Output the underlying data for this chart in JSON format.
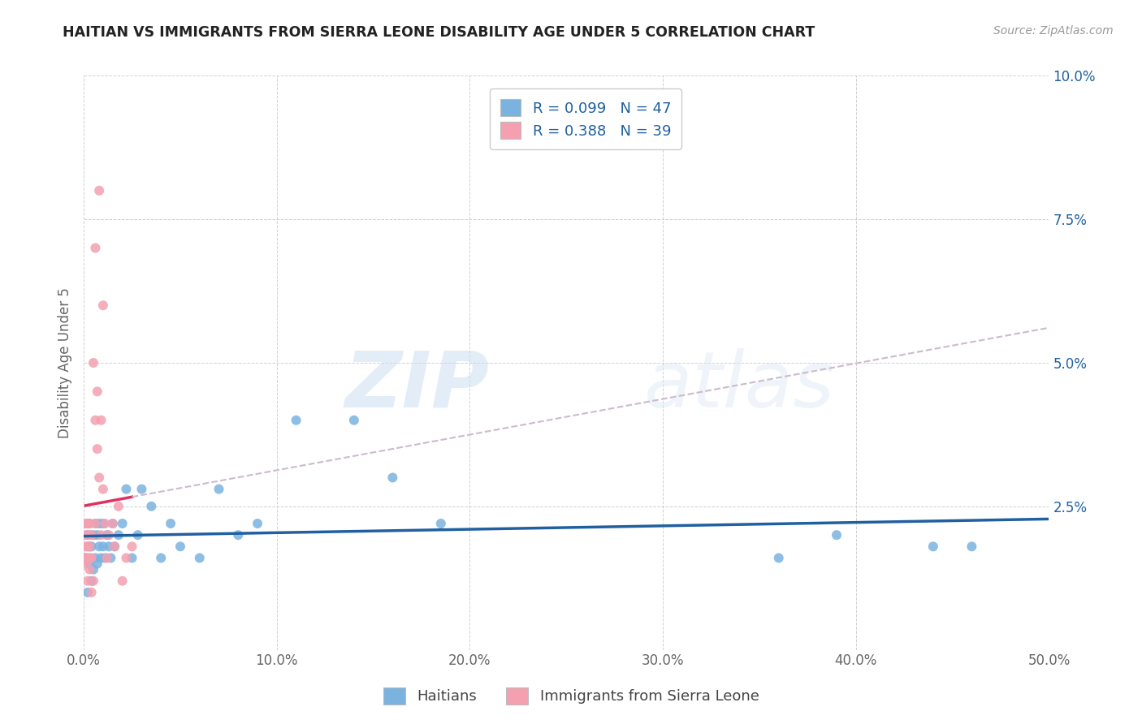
{
  "title": "HAITIAN VS IMMIGRANTS FROM SIERRA LEONE DISABILITY AGE UNDER 5 CORRELATION CHART",
  "source": "Source: ZipAtlas.com",
  "ylabel": "Disability Age Under 5",
  "xlim": [
    0.0,
    0.5
  ],
  "ylim": [
    0.0,
    0.1
  ],
  "xticks": [
    0.0,
    0.1,
    0.2,
    0.3,
    0.4,
    0.5
  ],
  "yticks": [
    0.0,
    0.025,
    0.05,
    0.075,
    0.1
  ],
  "xtick_labels": [
    "0.0%",
    "10.0%",
    "20.0%",
    "30.0%",
    "40.0%",
    "50.0%"
  ],
  "ytick_labels": [
    "",
    "2.5%",
    "5.0%",
    "7.5%",
    "10.0%"
  ],
  "blue_R": 0.099,
  "blue_N": 47,
  "pink_R": 0.388,
  "pink_N": 39,
  "blue_color": "#7ab3e0",
  "pink_color": "#f4a0b0",
  "blue_line_color": "#2060a0",
  "pink_line_color": "#e03060",
  "pink_line_dashed_color": "#ccbbcc",
  "watermark_zip": "ZIP",
  "watermark_atlas": "atlas",
  "legend_label_blue": "Haitians",
  "legend_label_pink": "Immigrants from Sierra Leone",
  "blue_scatter_x": [
    0.001,
    0.002,
    0.002,
    0.003,
    0.003,
    0.003,
    0.004,
    0.004,
    0.005,
    0.005,
    0.006,
    0.006,
    0.007,
    0.007,
    0.008,
    0.008,
    0.009,
    0.01,
    0.01,
    0.011,
    0.012,
    0.013,
    0.014,
    0.015,
    0.016,
    0.018,
    0.02,
    0.022,
    0.025,
    0.028,
    0.03,
    0.035,
    0.04,
    0.045,
    0.05,
    0.06,
    0.07,
    0.08,
    0.09,
    0.11,
    0.14,
    0.16,
    0.185,
    0.36,
    0.39,
    0.44,
    0.46
  ],
  "blue_scatter_y": [
    0.016,
    0.01,
    0.02,
    0.015,
    0.018,
    0.022,
    0.012,
    0.018,
    0.014,
    0.02,
    0.016,
    0.022,
    0.015,
    0.02,
    0.018,
    0.022,
    0.016,
    0.018,
    0.022,
    0.016,
    0.02,
    0.018,
    0.016,
    0.022,
    0.018,
    0.02,
    0.022,
    0.028,
    0.016,
    0.02,
    0.028,
    0.025,
    0.016,
    0.022,
    0.018,
    0.016,
    0.028,
    0.02,
    0.022,
    0.04,
    0.04,
    0.03,
    0.022,
    0.016,
    0.02,
    0.018,
    0.018
  ],
  "pink_scatter_x": [
    0.001,
    0.001,
    0.001,
    0.001,
    0.001,
    0.002,
    0.002,
    0.002,
    0.002,
    0.003,
    0.003,
    0.003,
    0.003,
    0.003,
    0.004,
    0.004,
    0.004,
    0.005,
    0.005,
    0.006,
    0.006,
    0.006,
    0.007,
    0.007,
    0.008,
    0.008,
    0.009,
    0.009,
    0.01,
    0.01,
    0.011,
    0.012,
    0.013,
    0.015,
    0.016,
    0.018,
    0.02,
    0.022,
    0.025
  ],
  "pink_scatter_y": [
    0.015,
    0.016,
    0.018,
    0.02,
    0.022,
    0.012,
    0.016,
    0.018,
    0.022,
    0.014,
    0.016,
    0.018,
    0.02,
    0.022,
    0.01,
    0.016,
    0.02,
    0.012,
    0.05,
    0.022,
    0.04,
    0.07,
    0.035,
    0.045,
    0.03,
    0.08,
    0.02,
    0.04,
    0.028,
    0.06,
    0.022,
    0.016,
    0.02,
    0.022,
    0.018,
    0.025,
    0.012,
    0.016,
    0.018
  ]
}
